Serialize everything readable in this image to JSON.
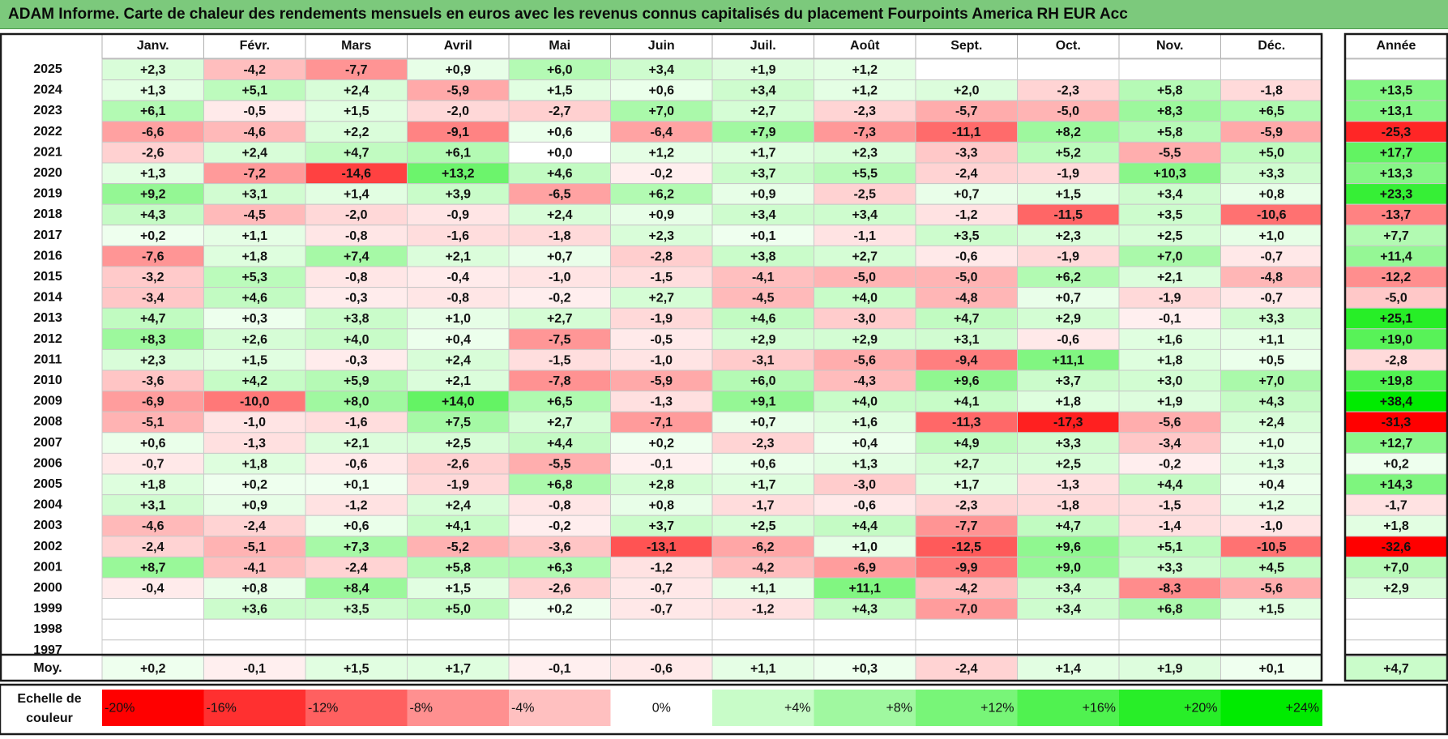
{
  "title": "ADAM Informe. Carte de chaleur des rendements mensuels en euros avec les revenus connus capitalisés du placement Fourpoints America RH EUR Acc",
  "chart_data": {
    "type": "heatmap",
    "months": [
      "Janv.",
      "Févr.",
      "Mars",
      "Avril",
      "Mai",
      "Juin",
      "Juil.",
      "Août",
      "Sept.",
      "Oct.",
      "Nov.",
      "Déc."
    ],
    "year_header": "Année",
    "rows": [
      {
        "year": "2025",
        "months": [
          "+2,3",
          "-4,2",
          "-7,7",
          "+0,9",
          "+6,0",
          "+3,4",
          "+1,9",
          "+1,2",
          "",
          "",
          "",
          ""
        ],
        "annual": ""
      },
      {
        "year": "2024",
        "months": [
          "+1,3",
          "+5,1",
          "+2,4",
          "-5,9",
          "+1,5",
          "+0,6",
          "+3,4",
          "+1,2",
          "+2,0",
          "-2,3",
          "+5,8",
          "-1,8"
        ],
        "annual": "+13,5"
      },
      {
        "year": "2023",
        "months": [
          "+6,1",
          "-0,5",
          "+1,5",
          "-2,0",
          "-2,7",
          "+7,0",
          "+2,7",
          "-2,3",
          "-5,7",
          "-5,0",
          "+8,3",
          "+6,5"
        ],
        "annual": "+13,1"
      },
      {
        "year": "2022",
        "months": [
          "-6,6",
          "-4,6",
          "+2,2",
          "-9,1",
          "+0,6",
          "-6,4",
          "+7,9",
          "-7,3",
          "-11,1",
          "+8,2",
          "+5,8",
          "-5,9"
        ],
        "annual": "-25,3"
      },
      {
        "year": "2021",
        "months": [
          "-2,6",
          "+2,4",
          "+4,7",
          "+6,1",
          "+0,0",
          "+1,2",
          "+1,7",
          "+2,3",
          "-3,3",
          "+5,2",
          "-5,5",
          "+5,0"
        ],
        "annual": "+17,7"
      },
      {
        "year": "2020",
        "months": [
          "+1,3",
          "-7,2",
          "-14,6",
          "+13,2",
          "+4,6",
          "-0,2",
          "+3,7",
          "+5,5",
          "-2,4",
          "-1,9",
          "+10,3",
          "+3,3"
        ],
        "annual": "+13,3"
      },
      {
        "year": "2019",
        "months": [
          "+9,2",
          "+3,1",
          "+1,4",
          "+3,9",
          "-6,5",
          "+6,2",
          "+0,9",
          "-2,5",
          "+0,7",
          "+1,5",
          "+3,4",
          "+0,8"
        ],
        "annual": "+23,3"
      },
      {
        "year": "2018",
        "months": [
          "+4,3",
          "-4,5",
          "-2,0",
          "-0,9",
          "+2,4",
          "+0,9",
          "+3,4",
          "+3,4",
          "-1,2",
          "-11,5",
          "+3,5",
          "-10,6"
        ],
        "annual": "-13,7"
      },
      {
        "year": "2017",
        "months": [
          "+0,2",
          "+1,1",
          "-0,8",
          "-1,6",
          "-1,8",
          "+2,3",
          "+0,1",
          "-1,1",
          "+3,5",
          "+2,3",
          "+2,5",
          "+1,0"
        ],
        "annual": "+7,7"
      },
      {
        "year": "2016",
        "months": [
          "-7,6",
          "+1,8",
          "+7,4",
          "+2,1",
          "+0,7",
          "-2,8",
          "+3,8",
          "+2,7",
          "-0,6",
          "-1,9",
          "+7,0",
          "-0,7"
        ],
        "annual": "+11,4"
      },
      {
        "year": "2015",
        "months": [
          "-3,2",
          "+5,3",
          "-0,8",
          "-0,4",
          "-1,0",
          "-1,5",
          "-4,1",
          "-5,0",
          "-5,0",
          "+6,2",
          "+2,1",
          "-4,8"
        ],
        "annual": "-12,2"
      },
      {
        "year": "2014",
        "months": [
          "-3,4",
          "+4,6",
          "-0,3",
          "-0,8",
          "-0,2",
          "+2,7",
          "-4,5",
          "+4,0",
          "-4,8",
          "+0,7",
          "-1,9",
          "-0,7"
        ],
        "annual": "-5,0"
      },
      {
        "year": "2013",
        "months": [
          "+4,7",
          "+0,3",
          "+3,8",
          "+1,0",
          "+2,7",
          "-1,9",
          "+4,6",
          "-3,0",
          "+4,7",
          "+2,9",
          "-0,1",
          "+3,3"
        ],
        "annual": "+25,1"
      },
      {
        "year": "2012",
        "months": [
          "+8,3",
          "+2,6",
          "+4,0",
          "+0,4",
          "-7,5",
          "-0,5",
          "+2,9",
          "+2,9",
          "+3,1",
          "-0,6",
          "+1,6",
          "+1,1"
        ],
        "annual": "+19,0"
      },
      {
        "year": "2011",
        "months": [
          "+2,3",
          "+1,5",
          "-0,3",
          "+2,4",
          "-1,5",
          "-1,0",
          "-3,1",
          "-5,6",
          "-9,4",
          "+11,1",
          "+1,8",
          "+0,5"
        ],
        "annual": "-2,8"
      },
      {
        "year": "2010",
        "months": [
          "-3,6",
          "+4,2",
          "+5,9",
          "+2,1",
          "-7,8",
          "-5,9",
          "+6,0",
          "-4,3",
          "+9,6",
          "+3,7",
          "+3,0",
          "+7,0"
        ],
        "annual": "+19,8"
      },
      {
        "year": "2009",
        "months": [
          "-6,9",
          "-10,0",
          "+8,0",
          "+14,0",
          "+6,5",
          "-1,3",
          "+9,1",
          "+4,0",
          "+4,1",
          "+1,8",
          "+1,9",
          "+4,3"
        ],
        "annual": "+38,4"
      },
      {
        "year": "2008",
        "months": [
          "-5,1",
          "-1,0",
          "-1,6",
          "+7,5",
          "+2,7",
          "-7,1",
          "+0,7",
          "+1,6",
          "-11,3",
          "-17,3",
          "-5,6",
          "+2,4"
        ],
        "annual": "-31,3"
      },
      {
        "year": "2007",
        "months": [
          "+0,6",
          "-1,3",
          "+2,1",
          "+2,5",
          "+4,4",
          "+0,2",
          "-2,3",
          "+0,4",
          "+4,9",
          "+3,3",
          "-3,4",
          "+1,0"
        ],
        "annual": "+12,7"
      },
      {
        "year": "2006",
        "months": [
          "-0,7",
          "+1,8",
          "-0,6",
          "-2,6",
          "-5,5",
          "-0,1",
          "+0,6",
          "+1,3",
          "+2,7",
          "+2,5",
          "-0,2",
          "+1,3"
        ],
        "annual": "+0,2"
      },
      {
        "year": "2005",
        "months": [
          "+1,8",
          "+0,2",
          "+0,1",
          "-1,9",
          "+6,8",
          "+2,8",
          "+1,7",
          "-3,0",
          "+1,7",
          "-1,3",
          "+4,4",
          "+0,4"
        ],
        "annual": "+14,3"
      },
      {
        "year": "2004",
        "months": [
          "+3,1",
          "+0,9",
          "-1,2",
          "+2,4",
          "-0,8",
          "+0,8",
          "-1,7",
          "-0,6",
          "-2,3",
          "-1,8",
          "-1,5",
          "+1,2"
        ],
        "annual": "-1,7"
      },
      {
        "year": "2003",
        "months": [
          "-4,6",
          "-2,4",
          "+0,6",
          "+4,1",
          "-0,2",
          "+3,7",
          "+2,5",
          "+4,4",
          "-7,7",
          "+4,7",
          "-1,4",
          "-1,0"
        ],
        "annual": "+1,8"
      },
      {
        "year": "2002",
        "months": [
          "-2,4",
          "-5,1",
          "+7,3",
          "-5,2",
          "-3,6",
          "-13,1",
          "-6,2",
          "+1,0",
          "-12,5",
          "+9,6",
          "+5,1",
          "-10,5"
        ],
        "annual": "-32,6"
      },
      {
        "year": "2001",
        "months": [
          "+8,7",
          "-4,1",
          "-2,4",
          "+5,8",
          "+6,3",
          "-1,2",
          "-4,2",
          "-6,9",
          "-9,9",
          "+9,0",
          "+3,3",
          "+4,5"
        ],
        "annual": "+7,0"
      },
      {
        "year": "2000",
        "months": [
          "-0,4",
          "+0,8",
          "+8,4",
          "+1,5",
          "-2,6",
          "-0,7",
          "+1,1",
          "+11,1",
          "-4,2",
          "+3,4",
          "-8,3",
          "-5,6"
        ],
        "annual": "+2,9"
      },
      {
        "year": "1999",
        "months": [
          "",
          "+3,6",
          "+3,5",
          "+5,0",
          "+0,2",
          "-0,7",
          "-1,2",
          "+4,3",
          "-7,0",
          "+3,4",
          "+6,8",
          "+1,5"
        ],
        "annual": ""
      },
      {
        "year": "1998",
        "months": [
          "",
          "",
          "",
          "",
          "",
          "",
          "",
          "",
          "",
          "",
          "",
          ""
        ],
        "annual": ""
      },
      {
        "year": "1997",
        "months": [
          "",
          "",
          "",
          "",
          "",
          "",
          "",
          "",
          "",
          "",
          "",
          ""
        ],
        "annual": ""
      }
    ],
    "average": {
      "label": "Moy.",
      "months": [
        "+0,2",
        "-0,1",
        "+1,5",
        "+1,7",
        "-0,1",
        "-0,6",
        "+1,1",
        "+0,3",
        "-2,4",
        "+1,4",
        "+1,9",
        "+0,1"
      ],
      "annual": "+4,7"
    },
    "color_scale": {
      "label_line1": "Echelle de",
      "label_line2": "couleur",
      "stops": [
        "-20%",
        "-16%",
        "-12%",
        "-8%",
        "-4%",
        "0%",
        "+4%",
        "+8%",
        "+12%",
        "+16%",
        "+20%",
        "+24%"
      ]
    },
    "colors": {
      "negative": "#ff0000",
      "positive": "#00e600",
      "neutral": "#ffffff"
    }
  }
}
